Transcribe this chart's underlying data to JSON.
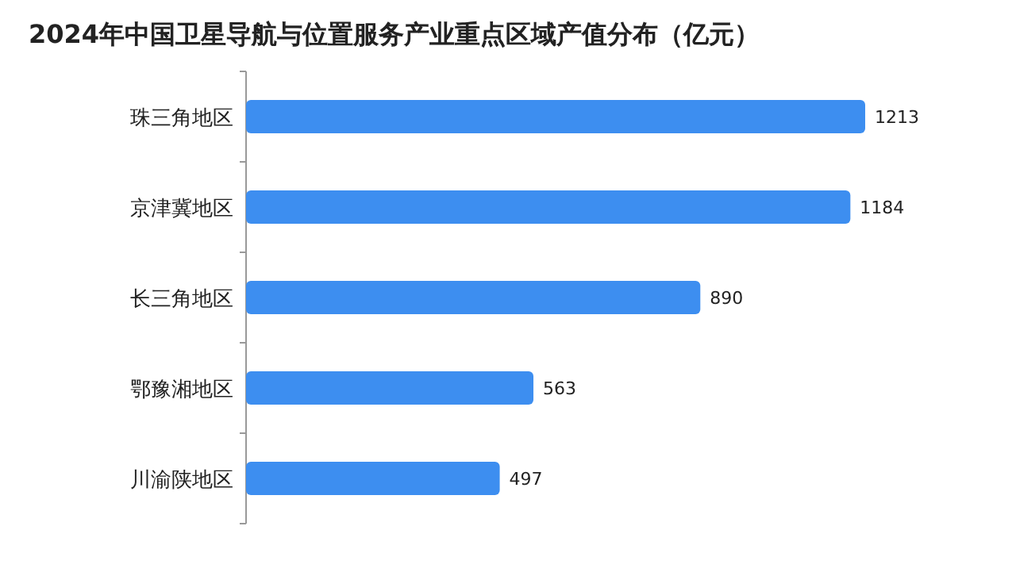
{
  "chart_data": {
    "type": "bar",
    "orientation": "horizontal",
    "title": "2024年中国卫星导航与位置服务产业重点区域产值分布（亿元）",
    "categories": [
      "珠三角地区",
      "京津冀地区",
      "长三角地区",
      "鄂豫湘地区",
      "川渝陕地区"
    ],
    "values": [
      1213,
      1184,
      890,
      563,
      497
    ],
    "color": "#3d8ef0",
    "data_labels": true
  }
}
